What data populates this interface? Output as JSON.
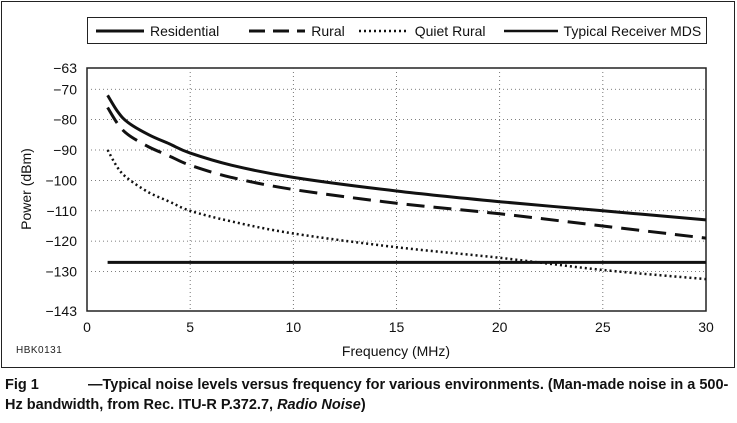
{
  "chart_data": {
    "type": "line",
    "title": "",
    "xlabel": "Frequency (MHz)",
    "ylabel": "Power (dBm)",
    "xlim": [
      0,
      30
    ],
    "ylim": [
      -143,
      -63
    ],
    "x_ticks": [
      0,
      5,
      10,
      15,
      20,
      25,
      30
    ],
    "y_ticks": [
      -63,
      -70,
      -80,
      -90,
      -100,
      -110,
      -120,
      -130,
      -143
    ],
    "x_tick_labels": [
      "0",
      "5",
      "10",
      "15",
      "20",
      "25",
      "30"
    ],
    "y_tick_labels": [
      "−63",
      "−70",
      "−80",
      "−90",
      "−100",
      "−110",
      "−120",
      "−130",
      "−143"
    ],
    "legend_position": "top",
    "series": [
      {
        "name": "Residential",
        "style": "solid",
        "x": [
          1,
          1.5,
          2,
          3,
          4,
          5,
          7,
          10,
          15,
          20,
          25,
          30
        ],
        "y": [
          -72,
          -77.5,
          -81,
          -85,
          -88,
          -91,
          -95,
          -99,
          -103.5,
          -107,
          -110,
          -113
        ]
      },
      {
        "name": "Rural",
        "style": "dashed",
        "x": [
          1,
          1.5,
          2,
          3,
          4,
          5,
          7,
          10,
          15,
          20,
          25,
          30
        ],
        "y": [
          -76,
          -81.5,
          -85,
          -89,
          -92,
          -95,
          -99,
          -103,
          -107.5,
          -111,
          -115,
          -119
        ]
      },
      {
        "name": "Quiet Rural",
        "style": "dotted",
        "x": [
          1,
          1.5,
          2,
          3,
          4,
          5,
          7,
          10,
          15,
          20,
          25,
          30
        ],
        "y": [
          -90,
          -96,
          -99.5,
          -104,
          -107,
          -110,
          -113.5,
          -117.5,
          -122,
          -125.5,
          -129.5,
          -132.5
        ]
      },
      {
        "name": "Typical Receiver MDS",
        "style": "solid",
        "x": [
          1,
          30
        ],
        "y": [
          -127,
          -127
        ]
      }
    ]
  },
  "figure_id": "HBK0131",
  "caption": {
    "label": "Fig 1",
    "text_before_italic": "—Typical noise levels versus frequency for various environments. (Man-made noise in a 500-Hz bandwidth, from Rec. ITU-R P.372.7, ",
    "italic": "Radio Noise",
    "text_after_italic": ")"
  }
}
